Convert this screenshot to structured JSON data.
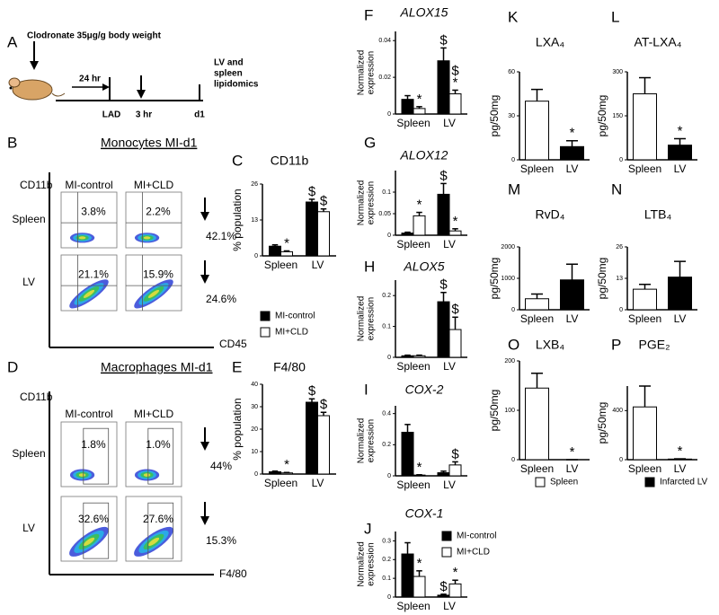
{
  "schematic": {
    "letter": "A",
    "treatment": "Clodronate 35μg/g body weight",
    "interval_1": "24 hr",
    "surgery": "LAD",
    "interval_2": "3 hr",
    "endpoint": "d1",
    "readout": [
      "LV and",
      "spleen",
      "lipidomics"
    ]
  },
  "flow_panels": [
    {
      "letter": "B",
      "title": "Monocytes MI-d1",
      "y_axis": "CD11b",
      "x_axis": "CD45",
      "columns": [
        "MI-control",
        "MI+CLD"
      ],
      "rows": [
        "Spleen",
        "LV"
      ],
      "percents": [
        [
          "3.8%",
          "2.2%"
        ],
        [
          "21.1%",
          "15.9%"
        ]
      ],
      "reductions": [
        "42.1%",
        "24.6%"
      ]
    },
    {
      "letter": "D",
      "title": "Macrophages MI-d1",
      "y_axis": "CD11b",
      "x_axis": "F4/80",
      "columns": [
        "MI-control",
        "MI+CLD"
      ],
      "rows": [
        "Spleen",
        "LV"
      ],
      "percents": [
        [
          "1.8%",
          "1.0%"
        ],
        [
          "32.6%",
          "27.6%"
        ]
      ],
      "reductions": [
        "44%",
        "15.3%"
      ]
    }
  ],
  "chart_data": [
    {
      "type": "bar",
      "letter": "C",
      "title": "CD11b",
      "ylabel": [
        "% population"
      ],
      "categories": [
        "Spleen",
        "LV"
      ],
      "series": [
        {
          "name": "MI-control",
          "color": "#000000",
          "values": [
            3.5,
            19.5
          ],
          "errors": [
            0.5,
            1
          ],
          "annotations": [
            null,
            [
              "$"
            ]
          ]
        },
        {
          "name": "MI+CLD",
          "color": "#ffffff",
          "values": [
            1.5,
            16
          ],
          "errors": [
            0.3,
            1
          ],
          "annotations": [
            [
              "*"
            ],
            [
              "$"
            ]
          ]
        }
      ],
      "ylim": [
        0,
        26
      ],
      "yticks": [
        0,
        13,
        26
      ],
      "legend": true
    },
    {
      "type": "bar",
      "letter": "E",
      "title": "F4/80",
      "ylabel": [
        "% population"
      ],
      "categories": [
        "Spleen",
        "LV"
      ],
      "series": [
        {
          "color": "#000000",
          "values": [
            1,
            32
          ],
          "errors": [
            0.3,
            1.5
          ],
          "annotations": [
            null,
            [
              "$"
            ]
          ]
        },
        {
          "color": "#ffffff",
          "values": [
            0.5,
            26
          ],
          "errors": [
            0.2,
            1.5
          ],
          "annotations": [
            [
              "*"
            ],
            [
              "$"
            ]
          ]
        }
      ],
      "ylim": [
        0,
        40
      ],
      "yticks": [
        0,
        10,
        20,
        30,
        40
      ]
    },
    {
      "type": "bar",
      "letter": "F",
      "title": "ALOX15",
      "ylabel": [
        "Normalized",
        "expression"
      ],
      "categories": [
        "Spleen",
        "LV"
      ],
      "series": [
        {
          "color": "#000000",
          "values": [
            0.008,
            0.029
          ],
          "errors": [
            0.002,
            0.007
          ],
          "annotations": [
            null,
            [
              "$"
            ]
          ]
        },
        {
          "color": "#ffffff",
          "values": [
            0.003,
            0.011
          ],
          "errors": [
            0.001,
            0.002
          ],
          "annotations": [
            [
              "*"
            ],
            [
              "$",
              "*"
            ]
          ]
        }
      ],
      "ylim": [
        0,
        0.045
      ],
      "yticks": [
        0,
        0.02,
        0.04
      ]
    },
    {
      "type": "bar",
      "letter": "G",
      "title": "ALOX12",
      "ylabel": [
        "Normalized",
        "expression"
      ],
      "categories": [
        "Spleen",
        "LV"
      ],
      "series": [
        {
          "color": "#000000",
          "values": [
            0.005,
            0.095
          ],
          "errors": [
            0.002,
            0.025
          ],
          "annotations": [
            null,
            [
              "$"
            ]
          ]
        },
        {
          "color": "#ffffff",
          "values": [
            0.045,
            0.01
          ],
          "errors": [
            0.008,
            0.005
          ],
          "annotations": [
            [
              "*"
            ],
            [
              "*"
            ]
          ]
        }
      ],
      "ylim": [
        0,
        0.15
      ],
      "yticks": [
        0,
        0.05,
        0.1
      ]
    },
    {
      "type": "bar",
      "letter": "H",
      "title": "ALOX5",
      "ylabel": [
        "Normalized",
        "expression"
      ],
      "categories": [
        "Spleen",
        "LV"
      ],
      "series": [
        {
          "color": "#000000",
          "values": [
            0.005,
            0.18
          ],
          "errors": [
            0.002,
            0.03
          ],
          "annotations": [
            null,
            [
              "$"
            ]
          ]
        },
        {
          "color": "#ffffff",
          "values": [
            0.005,
            0.09
          ],
          "errors": [
            0.002,
            0.04
          ],
          "annotations": [
            null,
            [
              "$"
            ]
          ]
        }
      ],
      "ylim": [
        0,
        0.25
      ],
      "yticks": [
        0,
        0.1,
        0.2
      ]
    },
    {
      "type": "bar",
      "letter": "I",
      "title": "COX-2",
      "ylabel": [
        "Normalized",
        "expression"
      ],
      "categories": [
        "Spleen",
        "LV"
      ],
      "series": [
        {
          "color": "#000000",
          "values": [
            0.28,
            0.02
          ],
          "errors": [
            0.05,
            0.01
          ],
          "annotations": [
            null,
            null
          ]
        },
        {
          "color": "#ffffff",
          "values": [
            0.005,
            0.07
          ],
          "errors": [
            0.002,
            0.02
          ],
          "annotations": [
            [
              "*"
            ],
            [
              "$"
            ]
          ]
        }
      ],
      "ylim": [
        0,
        0.45
      ],
      "yticks": [
        0,
        0.2,
        0.4
      ]
    },
    {
      "type": "bar",
      "letter": "J",
      "title": "COX-1",
      "ylabel": [
        "Normalized",
        "expression"
      ],
      "categories": [
        "Spleen",
        "LV"
      ],
      "series": [
        {
          "name": "MI-control",
          "color": "#000000",
          "values": [
            0.23,
            0.01
          ],
          "errors": [
            0.06,
            0.005
          ],
          "annotations": [
            null,
            [
              "$"
            ]
          ]
        },
        {
          "name": "MI+CLD",
          "color": "#ffffff",
          "values": [
            0.11,
            0.07
          ],
          "errors": [
            0.03,
            0.02
          ],
          "annotations": [
            [
              "*"
            ],
            [
              "*"
            ]
          ]
        }
      ],
      "ylim": [
        0,
        0.35
      ],
      "yticks": [
        0,
        0.1,
        0.2,
        0.3
      ],
      "legend": true
    },
    {
      "type": "bar",
      "letter": "K",
      "title": "LXA₄",
      "ylabel": [
        "pg/50mg"
      ],
      "categories": [
        "Spleen",
        "LV"
      ],
      "series": [
        {
          "colors": [
            "#ffffff",
            "#000000"
          ],
          "values": [
            40,
            9
          ],
          "errors": [
            8,
            4
          ],
          "annotations": [
            null,
            [
              "*"
            ]
          ]
        }
      ],
      "ylim": [
        0,
        60
      ],
      "yticks": [
        0,
        30,
        60
      ]
    },
    {
      "type": "bar",
      "letter": "L",
      "title": "AT-LXA₄",
      "ylabel": [
        "pg/50mg"
      ],
      "categories": [
        "Spleen",
        "LV"
      ],
      "series": [
        {
          "colors": [
            "#ffffff",
            "#000000"
          ],
          "values": [
            225,
            50
          ],
          "errors": [
            55,
            22
          ],
          "annotations": [
            null,
            [
              "*"
            ]
          ]
        }
      ],
      "ylim": [
        0,
        300
      ],
      "yticks": [
        0,
        150,
        300
      ]
    },
    {
      "type": "bar",
      "letter": "M",
      "title": "RvD₄",
      "ylabel": [
        "pg/50mg"
      ],
      "categories": [
        "Spleen",
        "LV"
      ],
      "series": [
        {
          "colors": [
            "#ffffff",
            "#000000"
          ],
          "values": [
            350,
            950
          ],
          "errors": [
            150,
            500
          ]
        }
      ],
      "ylim": [
        0,
        2000
      ],
      "yticks": [
        0,
        1000,
        2000
      ]
    },
    {
      "type": "bar",
      "letter": "N",
      "title": "LTB₄",
      "ylabel": [
        "pg/50mg"
      ],
      "categories": [
        "Spleen",
        "LV"
      ],
      "series": [
        {
          "colors": [
            "#ffffff",
            "#000000"
          ],
          "values": [
            8.5,
            13.5
          ],
          "errors": [
            2,
            6.5
          ]
        }
      ],
      "ylim": [
        0,
        26
      ],
      "yticks": [
        0,
        13,
        26
      ]
    },
    {
      "type": "bar",
      "letter": "O",
      "title": "LXB₄",
      "ylabel": [
        "pg/50mg"
      ],
      "categories": [
        "Spleen",
        "LV"
      ],
      "series": [
        {
          "colors": [
            "#ffffff",
            "#000000"
          ],
          "values": [
            145,
            0
          ],
          "errors": [
            30,
            0
          ],
          "annotations": [
            null,
            [
              "*"
            ]
          ]
        }
      ],
      "ylim": [
        0,
        200
      ],
      "yticks": [
        0,
        100,
        200
      ],
      "legend_entries": [
        {
          "name": "Spleen",
          "color": "#ffffff"
        }
      ]
    },
    {
      "type": "bar",
      "letter": "P",
      "title": "PGE₂",
      "ylabel": [
        "pg/50mg"
      ],
      "categories": [
        "Spleen",
        "LV"
      ],
      "series": [
        {
          "colors": [
            "#ffffff",
            "#000000"
          ],
          "values": [
            430,
            5
          ],
          "errors": [
            170,
            2
          ],
          "annotations": [
            null,
            [
              "*"
            ]
          ]
        }
      ],
      "ylim": [
        0,
        600
      ],
      "yticks": [
        0,
        400
      ],
      "legend_entries": [
        {
          "name": "Infarcted LV",
          "color": "#000000"
        }
      ]
    }
  ]
}
